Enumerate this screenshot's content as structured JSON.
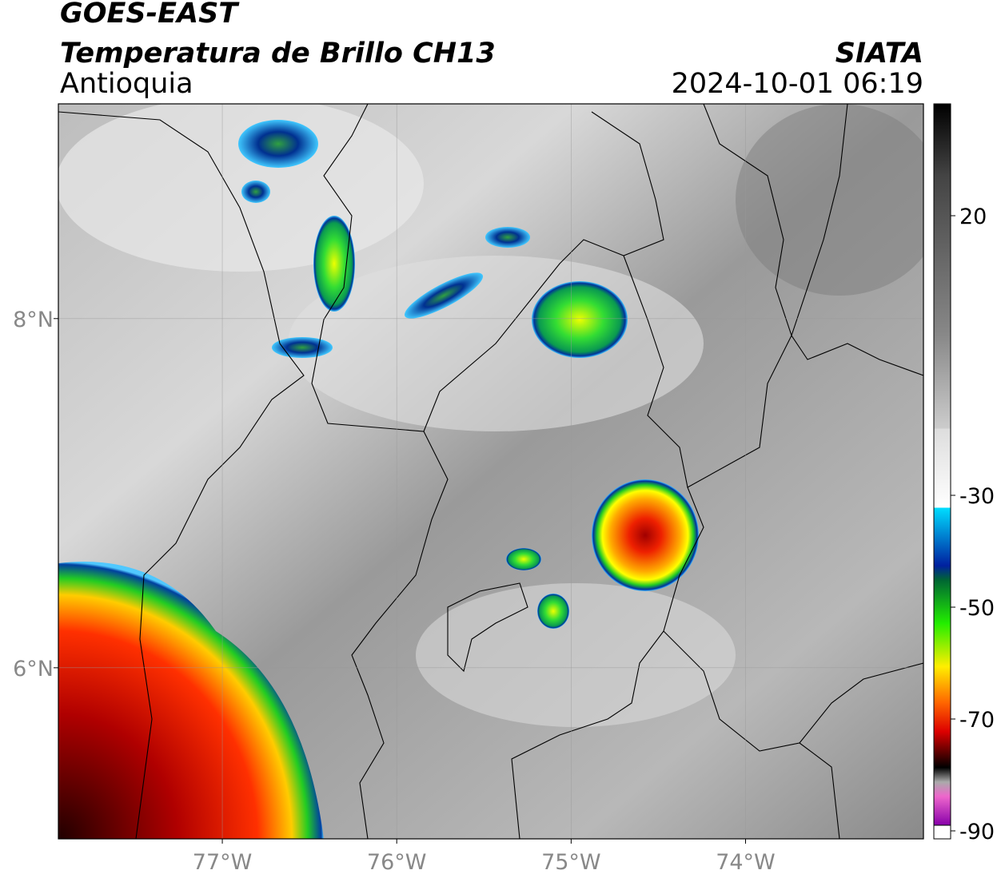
{
  "header": {
    "title": "GOES-EAST",
    "subtitle": "Temperatura de Brillo CH13",
    "region": "Antioquia",
    "source": "SIATA",
    "timestamp": "2024-10-01 06:19"
  },
  "map": {
    "lonlim": [
      -77.94,
      -72.98
    ],
    "latlim": [
      5.02,
      9.23
    ],
    "lonticks": [
      {
        "value": -77,
        "label": "77°W"
      },
      {
        "value": -76,
        "label": "76°W"
      },
      {
        "value": -75,
        "label": "75°W"
      },
      {
        "value": -74,
        "label": "74°W"
      }
    ],
    "latticks": [
      {
        "value": 8,
        "label": "8°N"
      },
      {
        "value": 6,
        "label": "6°N"
      }
    ]
  },
  "colorbar": {
    "lim": [
      -90,
      40
    ],
    "ticks": [
      20,
      -30,
      -50,
      -70,
      -90
    ]
  }
}
